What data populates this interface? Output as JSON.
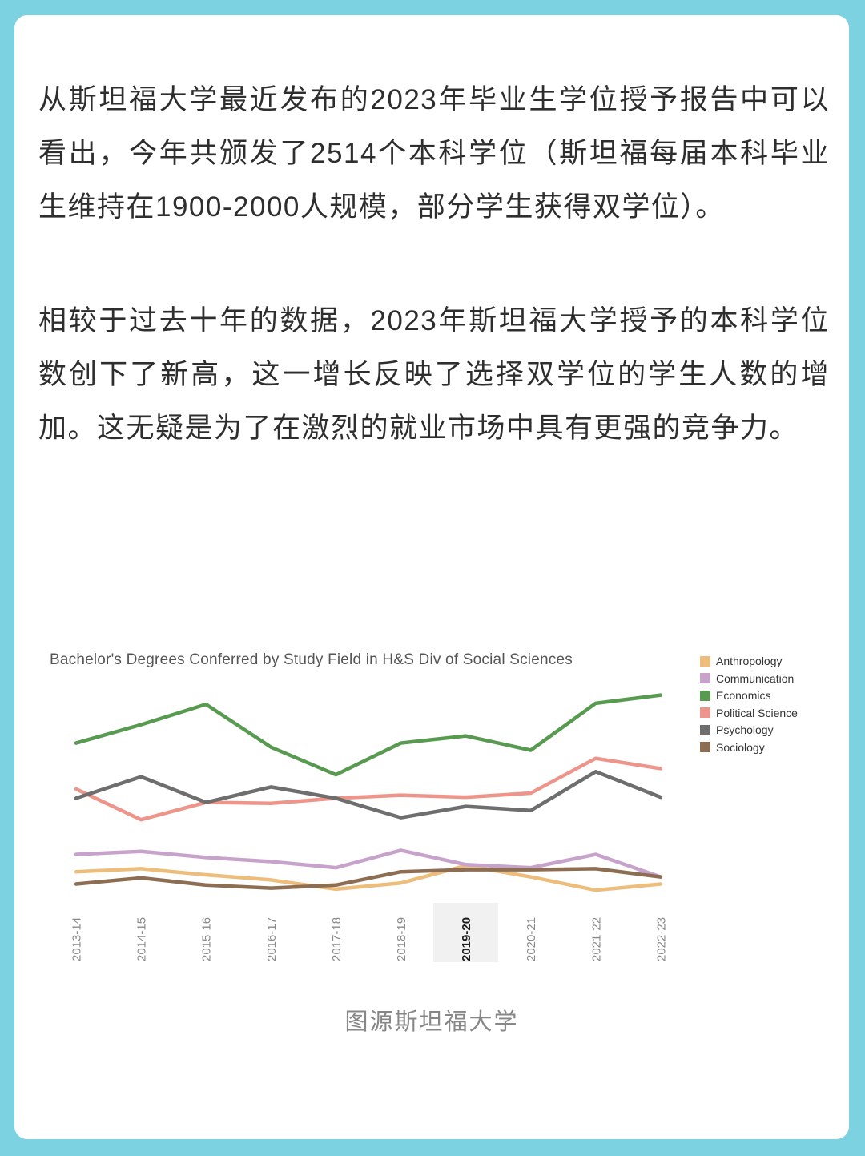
{
  "frame": {
    "background_color": "#7cd2e0",
    "card_color": "#ffffff"
  },
  "article": {
    "paragraph_1": "从斯坦福大学最近发布的2023年毕业生学位授予报告中可以看出，今年共颁发了2514个本科学位（斯坦福每届本科毕业生维持在1900-2000人规模，部分学生获得双学位）。",
    "paragraph_2": "相较于过去十年的数据，2023年斯坦福大学授予的本科学位数创下了新高，这一增长反映了选择双学位的学生人数的增加。这无疑是为了在激烈的就业市场中具有更强的竞争力。",
    "caption": "图源斯坦福大学"
  },
  "chart_data": {
    "type": "line",
    "title": "Bachelor's Degrees Conferred by Study Field in H&S Div of Social Sciences",
    "categories": [
      "2013-14",
      "2014-15",
      "2015-16",
      "2016-17",
      "2017-18",
      "2018-19",
      "2019-20",
      "2020-21",
      "2021-22",
      "2022-23"
    ],
    "highlighted_category": "2019-20",
    "xlabel": "",
    "ylabel": "",
    "ylim": [
      0,
      210
    ],
    "grid": false,
    "y_axis_labels_visible": false,
    "values_estimated_from_line_positions": true,
    "legend_position": "top-right",
    "x_tick_rotation": -90,
    "series": [
      {
        "name": "Anthropology",
        "color": "#edbe7b",
        "values": [
          21,
          24,
          18,
          13,
          4,
          10,
          27,
          16,
          3,
          9
        ]
      },
      {
        "name": "Communication",
        "color": "#c7a3cb",
        "values": [
          38,
          41,
          35,
          31,
          25,
          42,
          28,
          25,
          38,
          16
        ]
      },
      {
        "name": "Economics",
        "color": "#579a50",
        "values": [
          147,
          165,
          185,
          143,
          116,
          147,
          154,
          140,
          186,
          194
        ]
      },
      {
        "name": "Political Science",
        "color": "#ee958b",
        "values": [
          102,
          72,
          89,
          88,
          93,
          96,
          94,
          98,
          132,
          122
        ]
      },
      {
        "name": "Psychology",
        "color": "#6e6e6e",
        "values": [
          93,
          114,
          89,
          104,
          93,
          74,
          85,
          81,
          119,
          94
        ]
      },
      {
        "name": "Sociology",
        "color": "#8d6e53",
        "values": [
          9,
          15,
          8,
          5,
          8,
          21,
          23,
          23,
          24,
          16
        ]
      }
    ]
  }
}
